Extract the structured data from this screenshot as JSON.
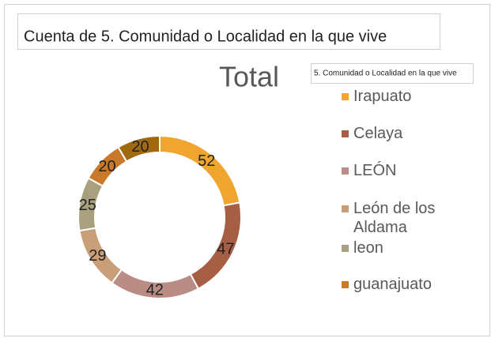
{
  "chart_data": {
    "type": "donut",
    "header": "Cuenta de 5. Comunidad o Localidad en la que vive",
    "title": "Total",
    "legend_title": "5. Comunidad o Localidad en la que vive",
    "categories": [
      "Irapuato",
      "Celaya",
      "LEÓN",
      "León de los Aldama",
      "leon",
      "guanajuato",
      null
    ],
    "values": [
      52,
      47,
      42,
      29,
      25,
      20,
      20
    ],
    "colors": [
      "#f0a52e",
      "#a65e44",
      "#b98c86",
      "#c89f78",
      "#a9a07f",
      "#c8792a",
      "#a0690f"
    ]
  }
}
